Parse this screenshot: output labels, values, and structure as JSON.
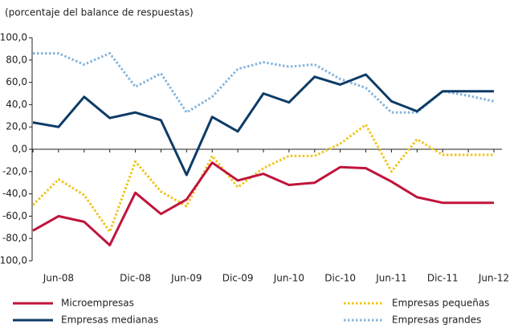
{
  "chart_data": {
    "type": "line",
    "subtitle": "(porcentaje del balance de respuestas)",
    "categories": [
      null,
      "Jun-08",
      null,
      null,
      "Dic-08",
      null,
      "Jun-09",
      null,
      "Dic-09",
      null,
      "Jun-10",
      null,
      "Dic-10",
      null,
      "Jun-11",
      null,
      "Dic-11",
      null,
      "Jun-12"
    ],
    "series": [
      {
        "name": "Microempresas",
        "color": "#c0143c",
        "dash": "solid",
        "values": [
          -73,
          -60,
          -65,
          -86,
          -39,
          -58,
          -45,
          -12,
          -28,
          -22,
          -32,
          -30,
          -16,
          -17,
          -29,
          -43,
          -48,
          -48,
          -48
        ]
      },
      {
        "name": "Empresas medianas",
        "color": "#0d3b66",
        "dash": "solid",
        "values": [
          24,
          20,
          47,
          28,
          33,
          26,
          -23,
          29,
          16,
          50,
          42,
          65,
          58,
          67,
          43,
          34,
          52,
          52,
          52
        ]
      },
      {
        "name": "Empresas pequeñas",
        "color": "#f0c419",
        "dash": "dotted",
        "values": [
          -50,
          -27,
          -41,
          -74,
          -11,
          -38,
          -51,
          -6,
          -34,
          -17,
          -6,
          -6,
          5,
          22,
          -20,
          9,
          -5,
          -5,
          -5
        ]
      },
      {
        "name": "Empresas grandes",
        "color": "#86b4dc",
        "dash": "dotted",
        "values": [
          86,
          86,
          76,
          86,
          56,
          68,
          33,
          47,
          72,
          78,
          74,
          76,
          63,
          55,
          33,
          33,
          52,
          48,
          43
        ]
      }
    ],
    "ylim": [
      -100,
      100
    ],
    "yticks": [
      {
        "value": 100,
        "label": "100,0"
      },
      {
        "value": 80,
        "label": "80,0"
      },
      {
        "value": 60,
        "label": "60,0"
      },
      {
        "value": 40,
        "label": "40,0"
      },
      {
        "value": 20,
        "label": "20,0"
      },
      {
        "value": 0,
        "label": "0,0"
      },
      {
        "value": -20,
        "label": "-20,0"
      },
      {
        "value": -40,
        "label": "-40,0"
      },
      {
        "value": -60,
        "label": "-60,0"
      },
      {
        "value": -80,
        "label": "-80,0"
      },
      {
        "value": -100,
        "label": "-100,0"
      }
    ],
    "grid": false
  }
}
